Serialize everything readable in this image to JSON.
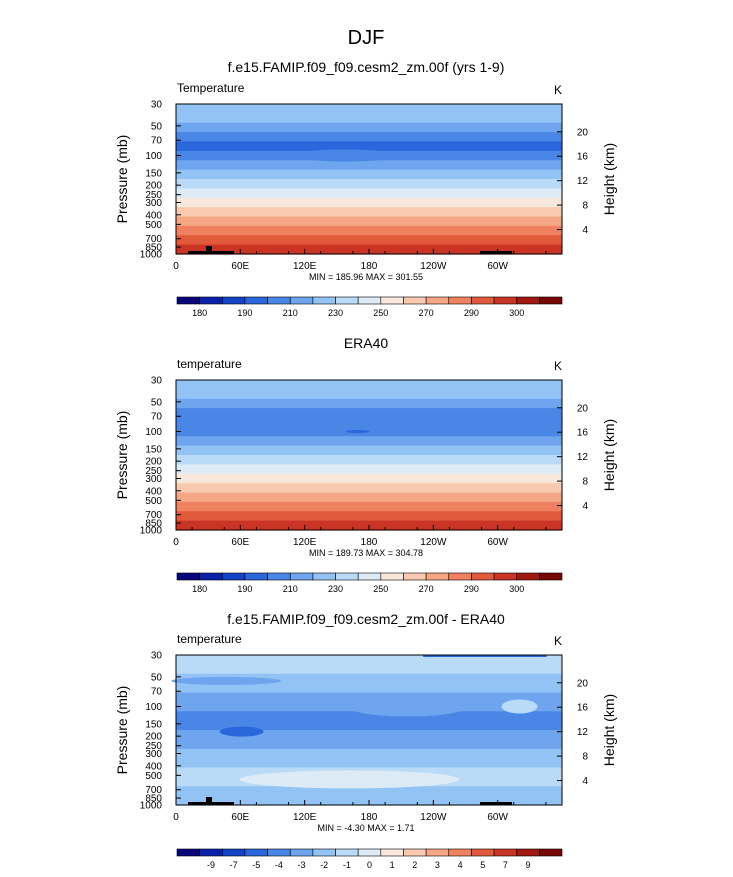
{
  "page_title": "DJF",
  "chart_data": [
    {
      "type": "heatmap",
      "title": "f.e15.FAMIP.f09_f09.cesm2_zm.00f (yrs 1-9)",
      "left_label": "Temperature",
      "units": "K",
      "ylabel": "Pressure (mb)",
      "ylabel_right": "Height (km)",
      "xticks": [
        "0",
        "60E",
        "120E",
        "180",
        "120W",
        "60W"
      ],
      "yticks": [
        "30",
        "50",
        "70",
        "100",
        "150",
        "200",
        "250",
        "300",
        "400",
        "500",
        "700",
        "850",
        "1000"
      ],
      "yticks_right": [
        "4",
        "8",
        "12",
        "16",
        "20"
      ],
      "stats": "MIN = 185.96  MAX = 301.55",
      "colorbar_labels": [
        "180",
        "190",
        "210",
        "230",
        "250",
        "270",
        "290",
        "300"
      ],
      "colors": [
        "#08057a",
        "#0b22a8",
        "#1443c8",
        "#2a67dc",
        "#4a86e6",
        "#6ea5ee",
        "#93c2f4",
        "#b9dbf7",
        "#dcebf6",
        "#f8e8dc",
        "#f9cab0",
        "#f5a684",
        "#ef8060",
        "#e25a3c",
        "#c93424",
        "#a0170f",
        "#760704"
      ],
      "stack": [
        6,
        6,
        5,
        4,
        3,
        4,
        5,
        6,
        7,
        8,
        9,
        10,
        11,
        12,
        13,
        14
      ],
      "dip": {
        "lon0": 0.3,
        "lon1": 0.58,
        "level": 4
      },
      "topo": true
    },
    {
      "type": "heatmap",
      "title": "ERA40",
      "left_label": "temperature",
      "units": "K",
      "ylabel": "Pressure (mb)",
      "ylabel_right": "Height (km)",
      "xticks": [
        "0",
        "60E",
        "120E",
        "180",
        "120W",
        "60W"
      ],
      "yticks": [
        "30",
        "50",
        "70",
        "100",
        "150",
        "200",
        "250",
        "300",
        "400",
        "500",
        "700",
        "850",
        "1000"
      ],
      "yticks_right": [
        "4",
        "8",
        "12",
        "16",
        "20"
      ],
      "stats": "MIN = 189.73  MAX = 304.78",
      "colorbar_labels": [
        "180",
        "190",
        "210",
        "230",
        "250",
        "270",
        "290",
        "300"
      ],
      "colors": [
        "#08057a",
        "#0b22a8",
        "#1443c8",
        "#2a67dc",
        "#4a86e6",
        "#6ea5ee",
        "#93c2f4",
        "#b9dbf7",
        "#dcebf6",
        "#f8e8dc",
        "#f9cab0",
        "#f5a684",
        "#ef8060",
        "#e25a3c",
        "#c93424",
        "#a0170f",
        "#760704"
      ],
      "stack": [
        6,
        6,
        5,
        4,
        4,
        4,
        5,
        6,
        7,
        8,
        9,
        10,
        11,
        12,
        13,
        14
      ],
      "topo": false
    },
    {
      "type": "heatmap",
      "title": "f.e15.FAMIP.f09_f09.cesm2_zm.00f - ERA40",
      "left_label": "temperature",
      "units": "K",
      "ylabel": "Pressure (mb)",
      "ylabel_right": "Height (km)",
      "xticks": [
        "0",
        "60E",
        "120E",
        "180",
        "120W",
        "60W"
      ],
      "yticks": [
        "30",
        "50",
        "70",
        "100",
        "150",
        "200",
        "250",
        "300",
        "400",
        "500",
        "700",
        "850",
        "1000"
      ],
      "yticks_right": [
        "4",
        "8",
        "12",
        "16",
        "20"
      ],
      "stats": "MIN = -4.30  MAX =  1.71",
      "colorbar_labels": [
        "-9",
        "-7",
        "-5",
        "-4",
        "-3",
        "-2",
        "-1",
        "0",
        "1",
        "2",
        "3",
        "4",
        "5",
        "7",
        "9"
      ],
      "colors": [
        "#08057a",
        "#0b22a8",
        "#1443c8",
        "#2a67dc",
        "#4a86e6",
        "#6ea5ee",
        "#93c2f4",
        "#b9dbf7",
        "#dcebf6",
        "#f8e8dc",
        "#f9cab0",
        "#f5a684",
        "#ef8060",
        "#e25a3c",
        "#c93424",
        "#a0170f",
        "#760704"
      ],
      "stack": [
        7,
        7,
        6,
        6,
        5,
        5,
        4,
        4,
        5,
        5,
        6,
        6,
        7,
        7,
        6,
        6
      ],
      "topo": true
    }
  ]
}
